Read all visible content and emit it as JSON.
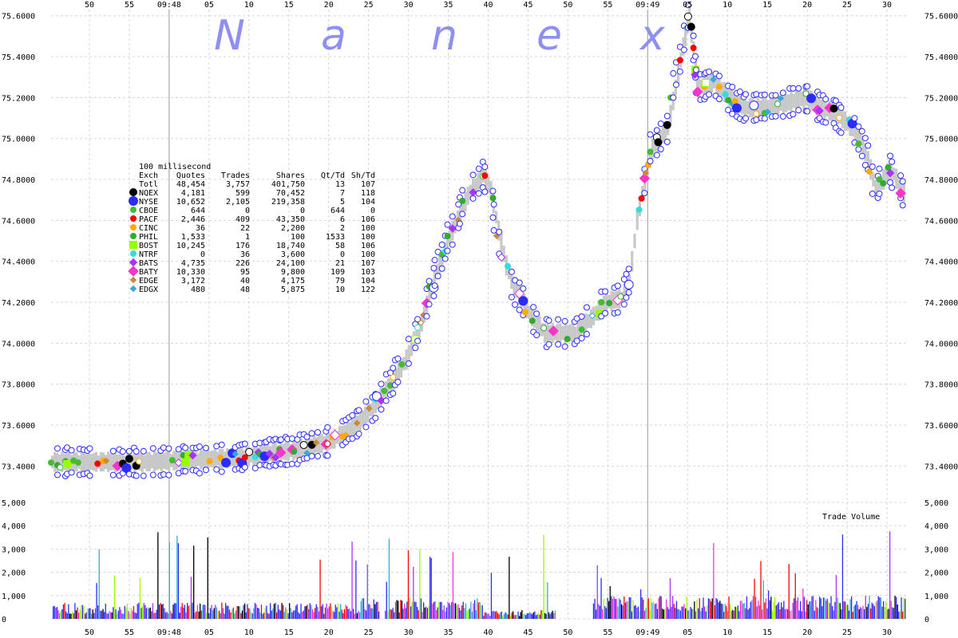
{
  "chart_data": {
    "type": "scatter",
    "title": "",
    "watermark": [
      "N",
      "a",
      "n",
      "e",
      "x"
    ],
    "watermark_color": "#8f8ff2",
    "x_tick_labels": [
      "50",
      "55",
      "09:48",
      "05",
      "10",
      "15",
      "20",
      "25",
      "30",
      "35",
      "40",
      "45",
      "50",
      "55",
      "09:49",
      "05",
      "10",
      "15",
      "20",
      "25",
      "30"
    ],
    "price_axis": {
      "ylim": [
        73.3,
        75.63
      ],
      "ticks": [
        "75.6000",
        "75.4000",
        "75.2000",
        "75.0000",
        "74.8000",
        "74.6000",
        "74.4000",
        "74.2000",
        "74.0000",
        "73.8000",
        "73.6000",
        "73.4000"
      ]
    },
    "volume_axis": {
      "title": "Trade Volume",
      "ylim": [
        0,
        5000
      ],
      "ticks": [
        "5,000",
        "4,000",
        "3,000",
        "2,000",
        "1,000",
        "0"
      ]
    },
    "grid": true,
    "nbbo_band_color": "#c8c8c8",
    "price_path": [
      [
        0,
        73.42
      ],
      [
        3,
        73.42
      ],
      [
        6,
        73.42
      ],
      [
        9,
        73.43
      ],
      [
        12,
        73.44
      ],
      [
        14,
        73.46
      ],
      [
        15,
        73.47
      ],
      [
        16,
        73.48
      ],
      [
        17,
        73.5
      ],
      [
        18,
        73.52
      ],
      [
        19,
        73.56
      ],
      [
        20,
        73.62
      ],
      [
        21,
        73.7
      ],
      [
        22,
        73.8
      ],
      [
        23,
        73.92
      ],
      [
        24,
        74.1
      ],
      [
        25,
        74.35
      ],
      [
        26,
        74.55
      ],
      [
        27,
        74.72
      ],
      [
        28,
        74.82
      ],
      [
        28.5,
        74.75
      ],
      [
        29,
        74.55
      ],
      [
        29.5,
        74.38
      ],
      [
        30,
        74.28
      ],
      [
        31,
        74.15
      ],
      [
        32,
        74.05
      ],
      [
        33,
        74.05
      ],
      [
        34,
        74.05
      ],
      [
        35,
        74.12
      ],
      [
        36,
        74.2
      ],
      [
        37,
        74.22
      ],
      [
        37.5,
        74.3
      ],
      [
        38,
        74.6
      ],
      [
        38.5,
        74.8
      ],
      [
        39,
        74.95
      ],
      [
        39.5,
        75.0
      ],
      [
        40,
        75.05
      ],
      [
        40.5,
        75.25
      ],
      [
        41,
        75.45
      ],
      [
        41.4,
        75.6
      ],
      [
        41.8,
        75.35
      ],
      [
        42,
        75.25
      ],
      [
        43,
        75.28
      ],
      [
        44,
        75.2
      ],
      [
        45,
        75.15
      ],
      [
        46,
        75.15
      ],
      [
        47,
        75.16
      ],
      [
        48,
        75.18
      ],
      [
        49,
        75.2
      ],
      [
        50,
        75.15
      ],
      [
        51,
        75.12
      ],
      [
        52,
        75.05
      ],
      [
        52.5,
        75.0
      ],
      [
        53,
        74.9
      ],
      [
        53.5,
        74.75
      ],
      [
        54,
        74.8
      ],
      [
        54.5,
        74.85
      ],
      [
        55,
        74.78
      ],
      [
        55.5,
        74.72
      ]
    ],
    "table": {
      "caption": "100 millisecond",
      "headers": [
        "Exch",
        "Quotes",
        "Trades",
        "Shares",
        "Qt/Td",
        "Sh/Td"
      ],
      "rows": [
        {
          "exch": "Totl",
          "quotes": "48,454",
          "trades": "3,757",
          "shares": "401,750",
          "qt_td": "13",
          "sh_td": "107",
          "color": "",
          "marker": "none"
        },
        {
          "exch": "NQEX",
          "quotes": "4,181",
          "trades": "599",
          "shares": "70,452",
          "qt_td": "7",
          "sh_td": "118",
          "color": "#000000",
          "marker": "circle-lg"
        },
        {
          "exch": "NYSE",
          "quotes": "10,652",
          "trades": "2,105",
          "shares": "219,358",
          "qt_td": "5",
          "sh_td": "104",
          "color": "#2b2bff",
          "marker": "circle-xl"
        },
        {
          "exch": "CBOE",
          "quotes": "644",
          "trades": "0",
          "shares": "0",
          "qt_td": "644",
          "sh_td": "0",
          "color": "#44bb33",
          "marker": "circle-sm"
        },
        {
          "exch": "PACF",
          "quotes": "2,446",
          "trades": "409",
          "shares": "43,350",
          "qt_td": "6",
          "sh_td": "106",
          "color": "#ff0000",
          "marker": "circle-sm"
        },
        {
          "exch": "CINC",
          "quotes": "36",
          "trades": "22",
          "shares": "2,200",
          "qt_td": "2",
          "sh_td": "100",
          "color": "#ffaa00",
          "marker": "circle-sm"
        },
        {
          "exch": "PHIL",
          "quotes": "1,533",
          "trades": "1",
          "shares": "100",
          "qt_td": "1533",
          "sh_td": "100",
          "color": "#33aa33",
          "marker": "circle-sm"
        },
        {
          "exch": "BOST",
          "quotes": "10,245",
          "trades": "176",
          "shares": "18,740",
          "qt_td": "58",
          "sh_td": "106",
          "color": "#99ff00",
          "marker": "square-lg"
        },
        {
          "exch": "NTRF",
          "quotes": "0",
          "trades": "36",
          "shares": "3,600",
          "qt_td": "0",
          "sh_td": "100",
          "color": "#33dddd",
          "marker": "circle-sm"
        },
        {
          "exch": "BATS",
          "quotes": "4,735",
          "trades": "226",
          "shares": "24,100",
          "qt_td": "21",
          "sh_td": "107",
          "color": "#aa33ff",
          "marker": "diamond"
        },
        {
          "exch": "BATY",
          "quotes": "10,330",
          "trades": "95",
          "shares": "9,800",
          "qt_td": "109",
          "sh_td": "103",
          "color": "#ff33cc",
          "marker": "diamond-lg"
        },
        {
          "exch": "EDGE",
          "quotes": "3,172",
          "trades": "40",
          "shares": "4,175",
          "qt_td": "79",
          "sh_td": "104",
          "color": "#cc8833",
          "marker": "diamond-sm"
        },
        {
          "exch": "EDGX",
          "quotes": "480",
          "trades": "48",
          "shares": "5,875",
          "qt_td": "10",
          "sh_td": "122",
          "color": "#33aadd",
          "marker": "diamond-sm"
        }
      ]
    }
  }
}
